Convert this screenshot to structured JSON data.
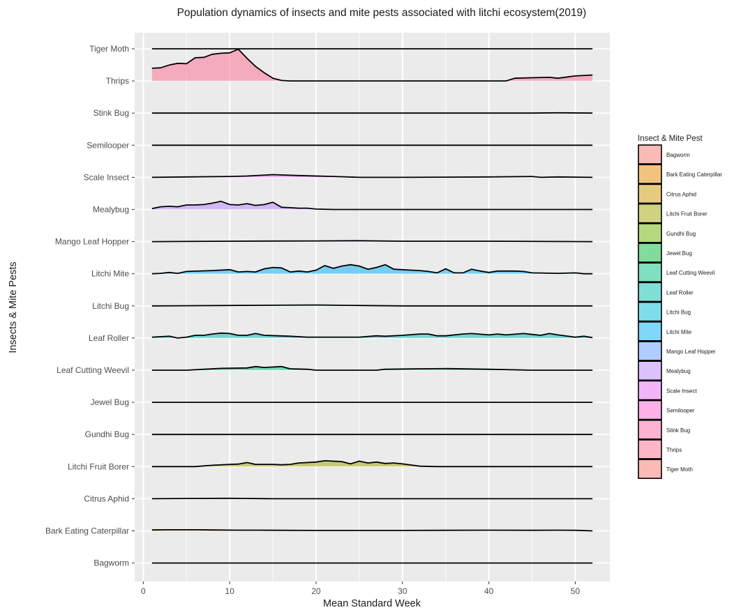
{
  "chart_data": {
    "type": "area",
    "subtype": "ridgeline",
    "title": "Population dynamics of insects and mite pests associated with litchi ecosystem(2019)",
    "xlabel": "Mean Standard Week",
    "ylabel": "Insects & Mite Pests",
    "xlim": [
      -1,
      54
    ],
    "x_ticks": [
      0,
      10,
      20,
      30,
      40,
      50
    ],
    "grid": true,
    "legend": {
      "title": "Insect & Mite Pest",
      "position": "right"
    },
    "series": [
      {
        "name": "Bagworm",
        "color": "#F8766D",
        "points": [
          [
            1,
            0
          ],
          [
            52,
            0
          ]
        ]
      },
      {
        "name": "Bark Eating Caterpillar",
        "color": "#E58700",
        "points": [
          [
            1,
            0.1
          ],
          [
            3,
            0.12
          ],
          [
            6,
            0.12
          ],
          [
            8,
            0.1
          ],
          [
            11,
            0.08
          ],
          [
            13,
            0.08
          ],
          [
            16,
            0.06
          ],
          [
            20,
            0.05
          ],
          [
            26,
            0.05
          ],
          [
            30,
            0.05
          ],
          [
            35,
            0.06
          ],
          [
            40,
            0.08
          ],
          [
            45,
            0.06
          ],
          [
            48,
            0.08
          ],
          [
            50,
            0.06
          ],
          [
            52,
            0
          ]
        ]
      },
      {
        "name": "Citrus Aphid",
        "color": "#C99800",
        "points": [
          [
            1,
            0
          ],
          [
            5,
            0.03
          ],
          [
            10,
            0.05
          ],
          [
            12,
            0.03
          ],
          [
            15,
            0
          ],
          [
            52,
            0
          ]
        ]
      },
      {
        "name": "Litchi Fruit Borer",
        "color": "#A3A500",
        "points": [
          [
            1,
            0
          ],
          [
            6,
            0
          ],
          [
            8,
            0.15
          ],
          [
            10,
            0.25
          ],
          [
            11,
            0.28
          ],
          [
            12,
            0.45
          ],
          [
            13,
            0.25
          ],
          [
            15,
            0.25
          ],
          [
            16,
            0.2
          ],
          [
            17,
            0.25
          ],
          [
            18,
            0.4
          ],
          [
            20,
            0.5
          ],
          [
            21,
            0.65
          ],
          [
            23,
            0.55
          ],
          [
            24,
            0.3
          ],
          [
            25,
            0.6
          ],
          [
            26,
            0.4
          ],
          [
            27,
            0.5
          ],
          [
            28,
            0.35
          ],
          [
            29,
            0.4
          ],
          [
            30,
            0.3
          ],
          [
            32,
            0.05
          ],
          [
            34,
            0
          ],
          [
            52,
            0
          ]
        ]
      },
      {
        "name": "Gundhi Bug",
        "color": "#6BB100",
        "points": [
          [
            1,
            0
          ],
          [
            52,
            0
          ]
        ]
      },
      {
        "name": "Jewel Bug",
        "color": "#00BA38",
        "points": [
          [
            1,
            0
          ],
          [
            52,
            0
          ]
        ]
      },
      {
        "name": "Leaf Cutting Weevil",
        "color": "#00BF7D",
        "points": [
          [
            1,
            0
          ],
          [
            5,
            0
          ],
          [
            7,
            0.1
          ],
          [
            9,
            0.2
          ],
          [
            12,
            0.25
          ],
          [
            13,
            0.4
          ],
          [
            14,
            0.3
          ],
          [
            16,
            0.4
          ],
          [
            17,
            0.15
          ],
          [
            19,
            0.1
          ],
          [
            20,
            0
          ],
          [
            27,
            0
          ],
          [
            28,
            0.1
          ],
          [
            32,
            0.15
          ],
          [
            35,
            0.18
          ],
          [
            40,
            0.1
          ],
          [
            45,
            0
          ],
          [
            52,
            0
          ]
        ]
      },
      {
        "name": "Leaf Roller",
        "color": "#00C0AF",
        "points": [
          [
            1,
            0.1
          ],
          [
            3,
            0.2
          ],
          [
            4,
            0
          ],
          [
            5,
            0.1
          ],
          [
            6,
            0.3
          ],
          [
            7,
            0.3
          ],
          [
            8,
            0.45
          ],
          [
            9,
            0.55
          ],
          [
            10,
            0.5
          ],
          [
            11,
            0.3
          ],
          [
            12,
            0.3
          ],
          [
            13,
            0.5
          ],
          [
            14,
            0.3
          ],
          [
            17,
            0.2
          ],
          [
            19,
            0.1
          ],
          [
            22,
            0.1
          ],
          [
            25,
            0.1
          ],
          [
            27,
            0.25
          ],
          [
            28,
            0.2
          ],
          [
            30,
            0.3
          ],
          [
            32,
            0.45
          ],
          [
            33,
            0.45
          ],
          [
            34,
            0.25
          ],
          [
            35,
            0.25
          ],
          [
            37,
            0.45
          ],
          [
            38,
            0.5
          ],
          [
            40,
            0.35
          ],
          [
            41,
            0.45
          ],
          [
            42,
            0.35
          ],
          [
            44,
            0.5
          ],
          [
            45,
            0.4
          ],
          [
            46,
            0.3
          ],
          [
            47,
            0.5
          ],
          [
            48,
            0.35
          ],
          [
            50,
            0.1
          ],
          [
            51,
            0.2
          ],
          [
            52,
            0.05
          ]
        ]
      },
      {
        "name": "Litchi Bug",
        "color": "#00BCD8",
        "points": [
          [
            1,
            0
          ],
          [
            10,
            0.05
          ],
          [
            20,
            0.1
          ],
          [
            25,
            0.05
          ],
          [
            30,
            0
          ],
          [
            52,
            0
          ]
        ]
      },
      {
        "name": "Litchi Mite",
        "color": "#00B0F6",
        "points": [
          [
            1,
            0
          ],
          [
            2,
            0.05
          ],
          [
            3,
            0.15
          ],
          [
            4,
            0.05
          ],
          [
            5,
            0.25
          ],
          [
            8,
            0.35
          ],
          [
            10,
            0.45
          ],
          [
            11,
            0.2
          ],
          [
            12,
            0.25
          ],
          [
            13,
            0.2
          ],
          [
            14,
            0.55
          ],
          [
            15,
            0.7
          ],
          [
            16,
            0.65
          ],
          [
            17,
            0.2
          ],
          [
            18,
            0.3
          ],
          [
            19,
            0.2
          ],
          [
            20,
            0.4
          ],
          [
            21,
            0.9
          ],
          [
            22,
            0.6
          ],
          [
            23,
            0.85
          ],
          [
            24,
            1.0
          ],
          [
            25,
            0.85
          ],
          [
            26,
            0.5
          ],
          [
            27,
            0.7
          ],
          [
            28,
            1.0
          ],
          [
            29,
            0.5
          ],
          [
            31,
            0.4
          ],
          [
            32,
            0.35
          ],
          [
            33,
            0.25
          ],
          [
            34,
            0.1
          ],
          [
            35,
            0.55
          ],
          [
            36,
            0.1
          ],
          [
            37,
            0.1
          ],
          [
            38,
            0.5
          ],
          [
            39,
            0.3
          ],
          [
            40,
            0.15
          ],
          [
            41,
            0.3
          ],
          [
            43,
            0.3
          ],
          [
            44,
            0.25
          ],
          [
            45,
            0.1
          ],
          [
            48,
            0.05
          ],
          [
            50,
            0.1
          ],
          [
            51,
            0
          ],
          [
            52,
            0
          ]
        ]
      },
      {
        "name": "Mango Leaf Hopper",
        "color": "#619CFF",
        "points": [
          [
            1,
            0
          ],
          [
            10,
            0.05
          ],
          [
            20,
            0.08
          ],
          [
            25,
            0.1
          ],
          [
            30,
            0.05
          ],
          [
            40,
            0.05
          ],
          [
            52,
            0
          ]
        ]
      },
      {
        "name": "Mealybug",
        "color": "#B983FF",
        "points": [
          [
            1,
            0.1
          ],
          [
            2,
            0.3
          ],
          [
            3,
            0.35
          ],
          [
            4,
            0.3
          ],
          [
            5,
            0.5
          ],
          [
            6,
            0.5
          ],
          [
            7,
            0.55
          ],
          [
            8,
            0.7
          ],
          [
            9,
            0.9
          ],
          [
            10,
            0.55
          ],
          [
            11,
            0.5
          ],
          [
            12,
            0.65
          ],
          [
            13,
            0.45
          ],
          [
            14,
            0.55
          ],
          [
            15,
            0.8
          ],
          [
            16,
            0.25
          ],
          [
            17,
            0.2
          ],
          [
            18,
            0.15
          ],
          [
            19,
            0.15
          ],
          [
            20,
            0.05
          ],
          [
            22,
            0
          ],
          [
            52,
            0
          ]
        ]
      },
      {
        "name": "Scale Insect",
        "color": "#E76BF3",
        "points": [
          [
            1,
            0
          ],
          [
            5,
            0.05
          ],
          [
            10,
            0.1
          ],
          [
            12,
            0.15
          ],
          [
            15,
            0.3
          ],
          [
            18,
            0.2
          ],
          [
            22,
            0.1
          ],
          [
            25,
            0
          ],
          [
            30,
            0
          ],
          [
            35,
            0.02
          ],
          [
            40,
            0.05
          ],
          [
            45,
            0.1
          ],
          [
            46,
            0
          ],
          [
            48,
            0.05
          ],
          [
            52,
            0
          ]
        ]
      },
      {
        "name": "Semilooper",
        "color": "#FD61D1",
        "points": [
          [
            1,
            0
          ],
          [
            52,
            0
          ]
        ]
      },
      {
        "name": "Stink Bug",
        "color": "#FF67A4",
        "points": [
          [
            1,
            0
          ],
          [
            45,
            0
          ],
          [
            48,
            0.03
          ],
          [
            52,
            0
          ]
        ]
      },
      {
        "name": "Thrips",
        "color": "#FF6C91",
        "points": [
          [
            1,
            1.4
          ],
          [
            2,
            1.45
          ],
          [
            3,
            1.75
          ],
          [
            4,
            1.95
          ],
          [
            5,
            1.9
          ],
          [
            6,
            2.55
          ],
          [
            7,
            2.6
          ],
          [
            8,
            2.95
          ],
          [
            9,
            3.05
          ],
          [
            10,
            3.1
          ],
          [
            11,
            3.5
          ],
          [
            12,
            2.5
          ],
          [
            13,
            1.6
          ],
          [
            14,
            0.9
          ],
          [
            15,
            0.3
          ],
          [
            16,
            0.05
          ],
          [
            17,
            0
          ],
          [
            42,
            0
          ],
          [
            43,
            0.3
          ],
          [
            45,
            0.35
          ],
          [
            47,
            0.4
          ],
          [
            48,
            0.3
          ],
          [
            50,
            0.55
          ],
          [
            52,
            0.65
          ]
        ]
      },
      {
        "name": "Tiger Moth",
        "color": "#F8766D",
        "points": [
          [
            1,
            0
          ],
          [
            52,
            0
          ]
        ]
      }
    ]
  }
}
